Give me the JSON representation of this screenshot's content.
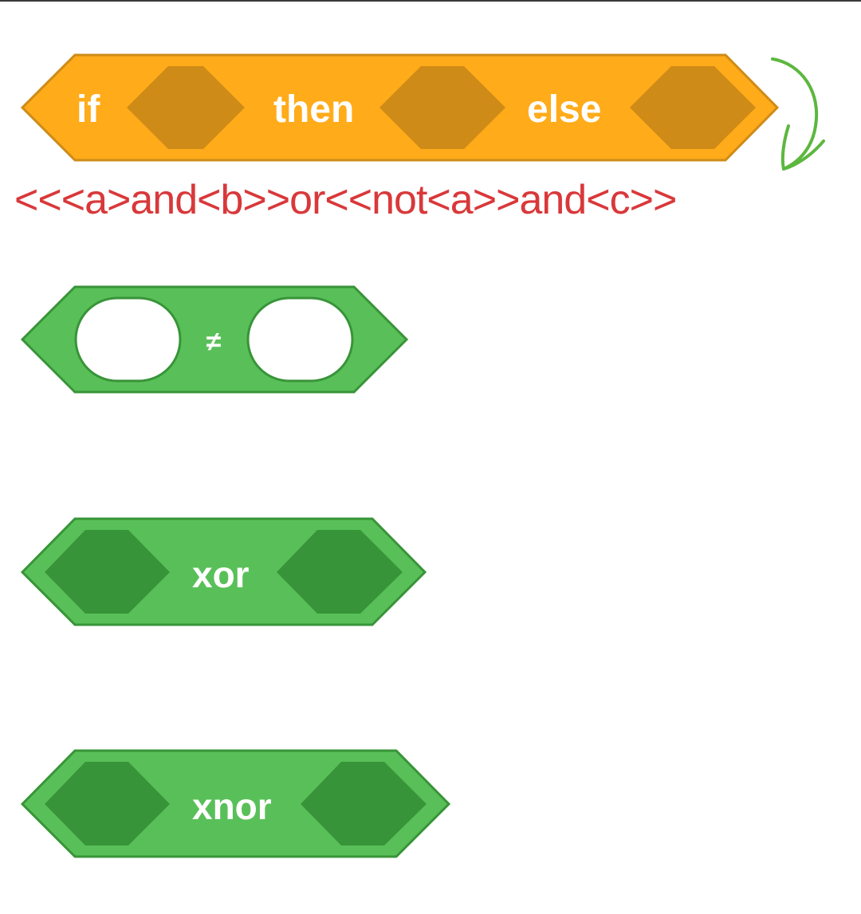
{
  "colors": {
    "control_fill": "#ffab1a",
    "control_stroke": "#cf8b17",
    "control_slot": "#cf8b17",
    "operator_fill": "#59c059",
    "operator_stroke": "#389438",
    "operator_slot": "#389438",
    "annotation_text": "#d9383a",
    "annotation_arrow": "#5cb73f",
    "label_text": "#ffffff"
  },
  "blocks": {
    "if_then_else": {
      "if_label": "if",
      "then_label": "then",
      "else_label": "else"
    },
    "not_equal": {
      "operator_label": "≠"
    },
    "xor": {
      "operator_label": "xor"
    },
    "xnor": {
      "operator_label": "xnor"
    }
  },
  "annotation": {
    "expression": "<<<a>and<b>>or<<not<a>>and<c>>",
    "arrow_icon": "curved-arrow-icon"
  }
}
